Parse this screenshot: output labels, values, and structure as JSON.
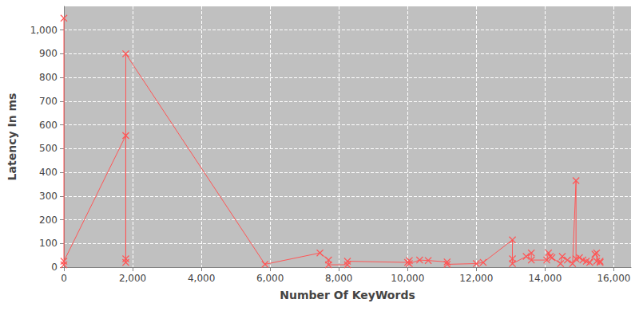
{
  "chart_data": {
    "type": "line",
    "x_label": "Number Of KeyWords",
    "y_label": "Latency In ms",
    "series": [
      {
        "color": "#ff5555",
        "marker": "x",
        "line_style": "solid",
        "x": [
          0,
          0,
          0,
          1800,
          1800,
          1800,
          1800,
          5850,
          7450,
          7700,
          7700,
          8250,
          8250,
          10000,
          10050,
          10050,
          10350,
          10600,
          11150,
          11150,
          12000,
          12200,
          13050,
          13050,
          13050,
          13450,
          13600,
          13600,
          14050,
          14100,
          14150,
          14200,
          14450,
          14500,
          14650,
          14800,
          14900,
          14900,
          15000,
          15100,
          15200,
          15300,
          15450,
          15500,
          15500,
          15600,
          15600
        ],
        "values": [
          1050,
          10,
          25,
          555,
          35,
          20,
          900,
          12,
          60,
          30,
          10,
          10,
          25,
          20,
          28,
          15,
          30,
          28,
          22,
          12,
          15,
          20,
          115,
          35,
          15,
          45,
          60,
          30,
          30,
          60,
          45,
          40,
          15,
          45,
          30,
          15,
          365,
          35,
          40,
          30,
          25,
          20,
          55,
          60,
          25,
          20,
          25
        ]
      }
    ],
    "xlim": [
      0,
      16500
    ],
    "xticks": [
      0,
      {
        "value": 2000,
        "label": "2,000"
      },
      {
        "value": 4000,
        "label": "4,000"
      },
      {
        "value": 6000,
        "label": "6,000"
      },
      {
        "value": 8000,
        "label": "8,000"
      },
      {
        "value": 10000,
        "label": "10,000"
      },
      {
        "value": 12000,
        "label": "12,000"
      },
      {
        "value": 14000,
        "label": "14,000"
      },
      {
        "value": 16000,
        "label": "16,000"
      }
    ],
    "ylim": [
      0,
      1100
    ],
    "yticks": [
      0,
      100,
      200,
      300,
      400,
      500,
      600,
      700,
      800,
      900,
      {
        "value": 1000,
        "label": "1,000"
      }
    ],
    "grid": true
  }
}
